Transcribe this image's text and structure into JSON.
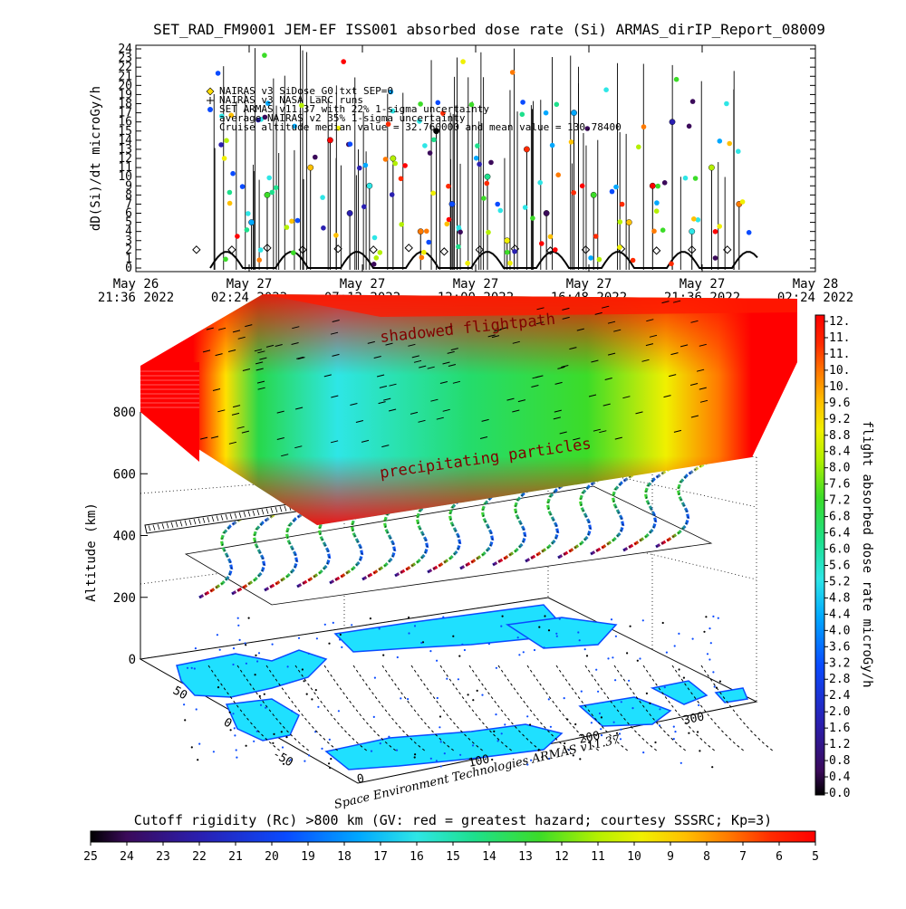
{
  "title": "SET_RAD_FM9001  JEM-EF ISS001 absorbed dose rate (Si) ARMAS_dirIP_Report_08009",
  "colors": {
    "rainbow": [
      "#000000",
      "#3b0a5a",
      "#2a1fb0",
      "#0a4bff",
      "#00a8ff",
      "#2ee6e6",
      "#1ee08c",
      "#3cdc28",
      "#b4f000",
      "#f0f000",
      "#ffc000",
      "#ff7a00",
      "#ff2a00",
      "#ff0000"
    ],
    "line": "#000000"
  },
  "top_plot": {
    "ylabel": "dD(Si)/dt microGy/h",
    "yticks": [
      "0",
      "1",
      "2",
      "3",
      "4",
      "5",
      "6",
      "7",
      "8",
      "9",
      "10",
      "11",
      "12",
      "13",
      "14",
      "15",
      "16",
      "17",
      "18",
      "19",
      "20",
      "21",
      "22",
      "23",
      "24"
    ],
    "xticks": [
      {
        "day": "May 26",
        "time": "21:36 2022"
      },
      {
        "day": "May 27",
        "time": "02:24 2022"
      },
      {
        "day": "May 27",
        "time": "07:12 2022"
      },
      {
        "day": "May 27",
        "time": "12:00 2022"
      },
      {
        "day": "May 27",
        "time": "16:48 2022"
      },
      {
        "day": "May 27",
        "time": "21:36 2022"
      },
      {
        "day": "May 28",
        "time": "02:24 2022"
      }
    ],
    "legend": [
      {
        "symbol": "diamond",
        "text": "NAIRAS v3 SiDose_G0.txt SEP=0"
      },
      {
        "symbol": "plus",
        "text": "NAIRAS v3 NASA LaRC runs"
      },
      {
        "symbol": "dot",
        "text": "SET ARMAS v11.37 with 22% 1-sigma uncertainty"
      },
      {
        "symbol": "none",
        "text": "average NAIRAS v2 35% 1-sigma uncertainty"
      },
      {
        "symbol": "none",
        "text": "Cruise altitude median value = 32.760000 and mean value = 130.78400"
      }
    ]
  },
  "plot3d": {
    "ylabel": "Altitude (km)",
    "zticks": [
      "0",
      "200",
      "400",
      "600",
      "800"
    ],
    "lat_ticks": [
      "50",
      "0",
      "-50"
    ],
    "lon_ticks": [
      "0",
      "100",
      "200",
      "300"
    ],
    "label_shadowed": "shadowed flightpath",
    "label_precip": "precipitating particles",
    "credit": "Space Environment Technologies ARMAS v11.37"
  },
  "right_colorbar": {
    "label": "flight absorbed dose rate microGy/h",
    "ticks": [
      "12.",
      "11.",
      "11.",
      "10.",
      "10.",
      "9.6",
      "9.2",
      "8.8",
      "8.4",
      "8.0",
      "7.6",
      "7.2",
      "6.8",
      "6.4",
      "6.0",
      "5.6",
      "5.2",
      "4.8",
      "4.4",
      "4.0",
      "3.6",
      "3.2",
      "2.8",
      "2.4",
      "2.0",
      "1.6",
      "1.2",
      "0.8",
      "0.4",
      "0.0"
    ]
  },
  "bottom_colorbar": {
    "title": "Cutoff rigidity (Rc) >800 km (GV: red = greatest hazard; courtesy SSSRC; Kp=3)",
    "ticks": [
      "25",
      "24",
      "23",
      "22",
      "21",
      "20",
      "19",
      "18",
      "17",
      "16",
      "15",
      "14",
      "13",
      "12",
      "11",
      "10",
      "9",
      "8",
      "7",
      "6",
      "5"
    ]
  },
  "chart_data": [
    {
      "type": "scatter",
      "title": "SET_RAD_FM9001  JEM-EF ISS001 absorbed dose rate (Si) ARMAS_dirIP_Report_08009",
      "xlabel": "",
      "ylabel": "dD(Si)/dt microGy/h",
      "ylim": [
        0,
        24
      ],
      "xlim": [
        "2022-05-26T21:36",
        "2022-05-28T02:24"
      ],
      "grid": false,
      "legend_position": "top-left",
      "series": [
        {
          "name": "NAIRAS v3 SiDose_G0.txt SEP=0",
          "x": [
            "2022-05-27T00:10",
            "2022-05-27T01:40",
            "2022-05-27T03:10",
            "2022-05-27T04:40",
            "2022-05-27T06:10",
            "2022-05-27T07:40",
            "2022-05-27T09:10",
            "2022-05-27T10:40",
            "2022-05-27T12:10",
            "2022-05-27T13:40",
            "2022-05-27T15:10",
            "2022-05-27T16:40",
            "2022-05-27T18:10",
            "2022-05-27T19:40",
            "2022-05-27T21:10",
            "2022-05-27T22:40"
          ],
          "y": [
            2.0,
            2.0,
            2.2,
            2.0,
            2.1,
            2.0,
            2.2,
            1.8,
            2.0,
            2.1,
            1.9,
            2.0,
            2.1,
            1.9,
            2.0,
            2.0
          ]
        },
        {
          "name": "SET ARMAS v11.37 with 22% 1-sigma uncertainty",
          "x": [
            "2022-05-27T02:30",
            "2022-05-27T03:10",
            "2022-05-27T05:00",
            "2022-05-27T05:50",
            "2022-05-27T06:40",
            "2022-05-27T07:30",
            "2022-05-27T08:30",
            "2022-05-27T09:40",
            "2022-05-27T10:20",
            "2022-05-27T11:00",
            "2022-05-27T12:30",
            "2022-05-27T13:20",
            "2022-05-27T14:10",
            "2022-05-27T15:00",
            "2022-05-27T16:10",
            "2022-05-27T17:00",
            "2022-05-27T18:30",
            "2022-05-27T19:30",
            "2022-05-27T20:20",
            "2022-05-27T21:10",
            "2022-05-27T22:00",
            "2022-05-27T23:10"
          ],
          "y": [
            5.0,
            8.0,
            11.0,
            14.0,
            6.0,
            9.0,
            12.0,
            4.0,
            15.0,
            7.0,
            10.0,
            3.0,
            13.0,
            6.0,
            17.0,
            8.0,
            5.0,
            9.0,
            16.0,
            4.0,
            11.0,
            7.0
          ]
        }
      ]
    },
    {
      "type": "heatmap",
      "title": "Cutoff rigidity (Rc) >800 km (GV: red = greatest hazard; courtesy SSSRC; Kp=3)",
      "xlabel": "",
      "ylabel": "Altitude (km)",
      "z_axis_ticks": [
        0,
        200,
        400,
        600,
        800
      ],
      "colorbar_range_GV": [
        5,
        25
      ],
      "dose_colorbar_range_microGy_h": [
        0.0,
        12.0
      ]
    }
  ]
}
